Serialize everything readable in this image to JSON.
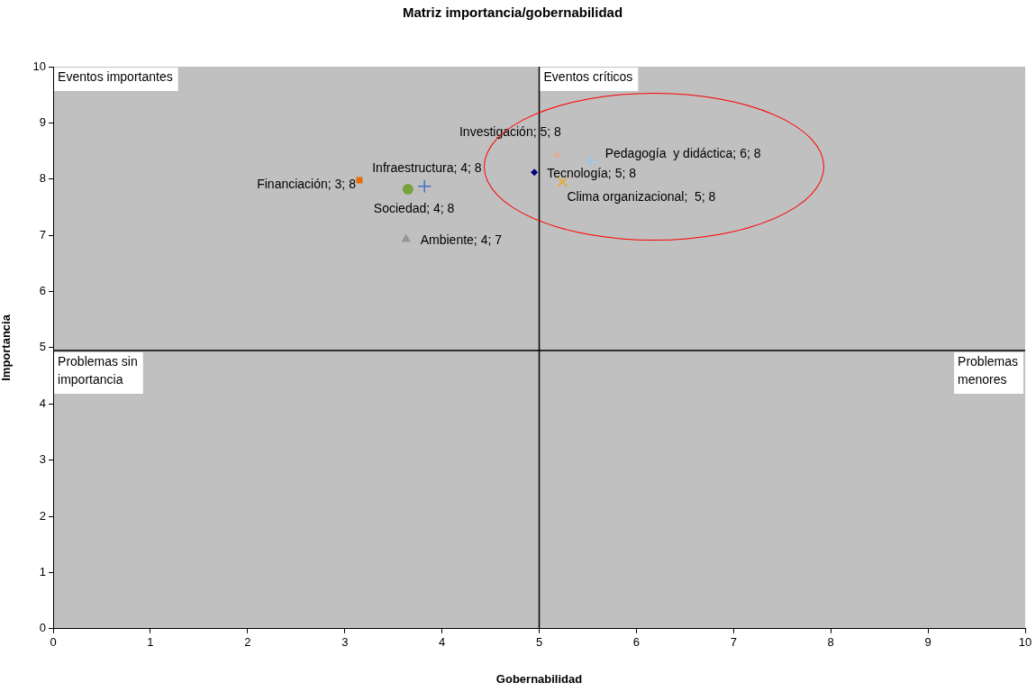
{
  "chart_data": {
    "type": "scatter",
    "title": "Matriz importancia/gobernabilidad",
    "xlabel": "Gobernabilidad",
    "ylabel": "Importancia",
    "xlim": [
      0,
      10
    ],
    "xticks": [
      0,
      1,
      2,
      3,
      4,
      5,
      6,
      7,
      8,
      9,
      10
    ],
    "ylim": [
      0,
      10
    ],
    "yticks": [
      0,
      1,
      2,
      3,
      4,
      5,
      6,
      7,
      8,
      9,
      10
    ],
    "grid": false,
    "legend": false,
    "series": [
      {
        "color": "#e46c0a",
        "marker": "square",
        "x": [
          3.15
        ],
        "values": [
          7.98
        ],
        "value_labels": [
          "Financiación; 3; 8"
        ]
      },
      {
        "color": "#77a33b",
        "marker": "circle",
        "x": [
          3.65
        ],
        "values": [
          7.82
        ],
        "value_labels": [
          "Sociedad; 4; 8"
        ]
      },
      {
        "color": "#4472c4",
        "marker": "cross",
        "x": [
          3.82
        ],
        "values": [
          7.87
        ],
        "value_labels": [
          "Infraestructura; 4; 8"
        ]
      },
      {
        "color": "#969696",
        "marker": "triangle",
        "x": [
          3.63
        ],
        "values": [
          6.93
        ],
        "value_labels": [
          "Ambiente; 4; 7"
        ]
      },
      {
        "color": "#000080",
        "marker": "diamond",
        "x": [
          4.95
        ],
        "values": [
          8.12
        ],
        "value_labels": [
          "Tecnología; 5; 8"
        ]
      },
      {
        "color": "#f4a582",
        "marker": "square",
        "x": [
          5.18
        ],
        "values": [
          8.43
        ],
        "value_labels": [
          "Investigación; 5; 8"
        ]
      },
      {
        "color": "#9dc3e6",
        "marker": "cross",
        "x": [
          5.53
        ],
        "values": [
          8.33
        ],
        "value_labels": [
          "Pedagogía  y didáctica; 6; 8"
        ]
      },
      {
        "color": "#e6a817",
        "marker": "cross",
        "x": [
          5.24
        ],
        "values": [
          7.95
        ],
        "value_labels": [
          "Clima organizacional;  5; 8"
        ]
      }
    ],
    "ref_lines": [
      {
        "axis": "x",
        "value": 5,
        "color": "#000000"
      },
      {
        "axis": "y",
        "value": 4.95,
        "color": "#000000"
      }
    ],
    "annotations": [
      "Eventos importantes",
      "Eventos críticos",
      "Problemas sin importancia",
      "Problemas menores"
    ]
  }
}
